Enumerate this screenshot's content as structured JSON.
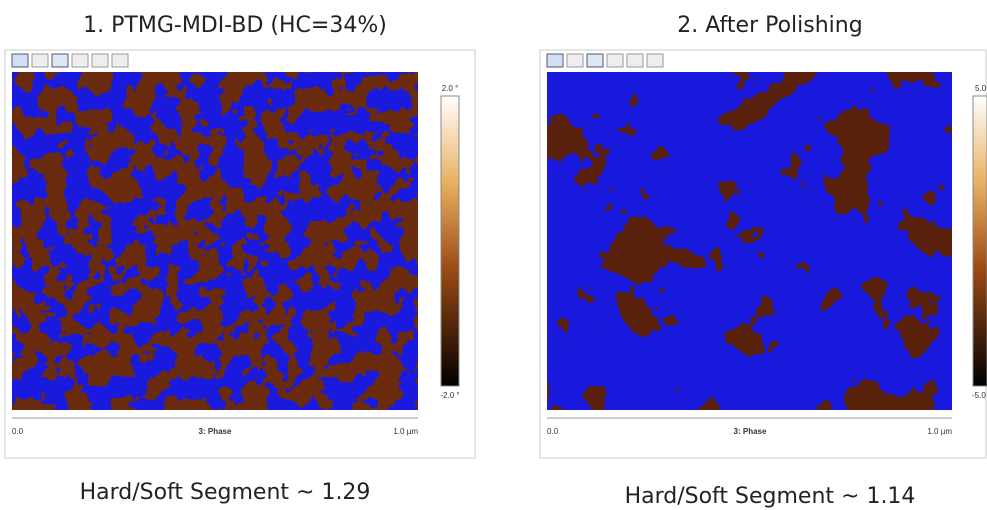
{
  "panels": [
    {
      "title": "1. PTMG-MDI-BD (HC=34%)",
      "scale_top": "2.0 °",
      "scale_bottom": "-2.0 °",
      "axis_left": "0.0",
      "axis_center": "3: Phase",
      "axis_right": "1.0 µm",
      "caption": "Hard/Soft Segment ~ 1.29"
    },
    {
      "title": "2. After Polishing",
      "scale_top": "5.0",
      "scale_bottom": "-5.0",
      "axis_left": "0.0",
      "axis_center": "3: Phase",
      "axis_right": "1.0 µm",
      "caption": "Hard/Soft Segment ~ 1.14"
    }
  ]
}
